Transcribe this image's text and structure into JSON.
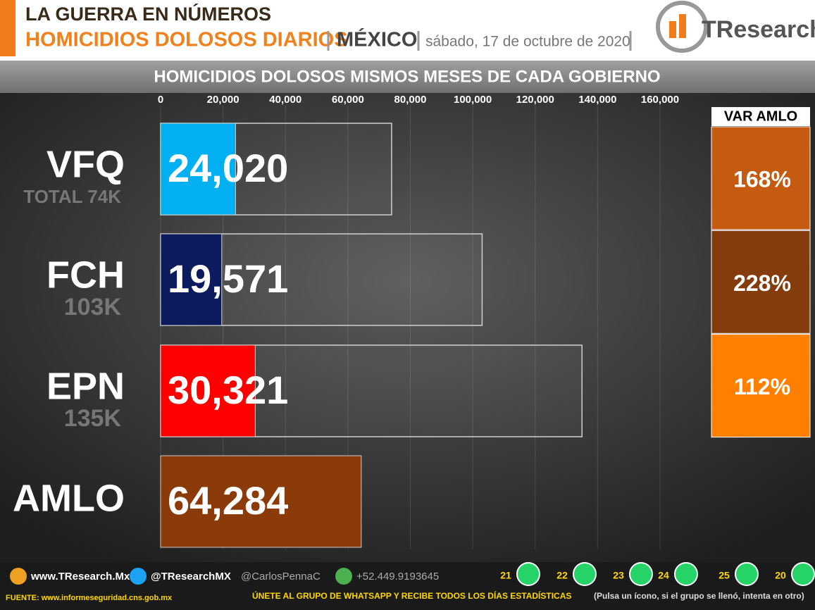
{
  "header": {
    "line1": "LA GUERRA EN NÚMEROS",
    "line2": "HOMICIDIOS DOLOSOS DIARIOS",
    "place": "MÉXICO",
    "date": "sábado, 17 de octubre de 2020",
    "logo": "TResearch"
  },
  "chart_data": {
    "type": "bar",
    "title": "HOMICIDIOS DOLOSOS MISMOS MESES DE CADA GOBIERNO",
    "categories": [
      "VFQ",
      "FCH",
      "EPN",
      "AMLO"
    ],
    "values": [
      24020,
      19571,
      30321,
      64284
    ],
    "value_labels": [
      "24,020",
      "19,571",
      "30,321",
      "64,284"
    ],
    "colors": [
      "#00b0f0",
      "#0c1a5e",
      "#ff0000",
      "#8b3a0a"
    ],
    "totals": [
      74000,
      103000,
      135000,
      null
    ],
    "total_labels": [
      "TOTAL 74K",
      "103K",
      "135K",
      null
    ],
    "total_color": "#d0d0d0",
    "xlim": [
      0,
      160000
    ],
    "xticks": [
      0,
      {
        "value": 20000,
        "label": "20,000"
      },
      {
        "value": 40000,
        "label": "40,000"
      },
      {
        "value": 60000,
        "label": "60,000"
      },
      {
        "value": 80000,
        "label": "80,000"
      },
      {
        "value": 100000,
        "label": "100,000"
      },
      {
        "value": 120000,
        "label": "120,000"
      },
      {
        "value": 140000,
        "label": "140,000"
      },
      {
        "value": 160000,
        "label": "160,000"
      }
    ],
    "grid": true,
    "var": {
      "title": "VAR AMLO",
      "values": [
        168,
        228,
        112
      ],
      "value_labels": [
        "168%",
        "228%",
        "112%"
      ],
      "colors": [
        "#c55a11",
        "#843c0c",
        "#ff7f00"
      ]
    }
  },
  "footer": {
    "web": "www.TResearch.Mx",
    "twitter": "@TResearchMX",
    "twitter2": "@CarlosPennaC",
    "phone": "+52.449.9193645",
    "groups": [
      "21",
      "22",
      "23",
      "24",
      "25",
      "20"
    ],
    "source": "FUENTE: www.informeseguridad.cns.gob.mx",
    "join": "ÚNETE AL GRUPO DE WHATSAPP Y RECIBE TODOS LOS DÍAS ESTADÍSTICAS",
    "hint": "(Pulsa un ícono, si el grupo se llenó, intenta en otro)"
  }
}
